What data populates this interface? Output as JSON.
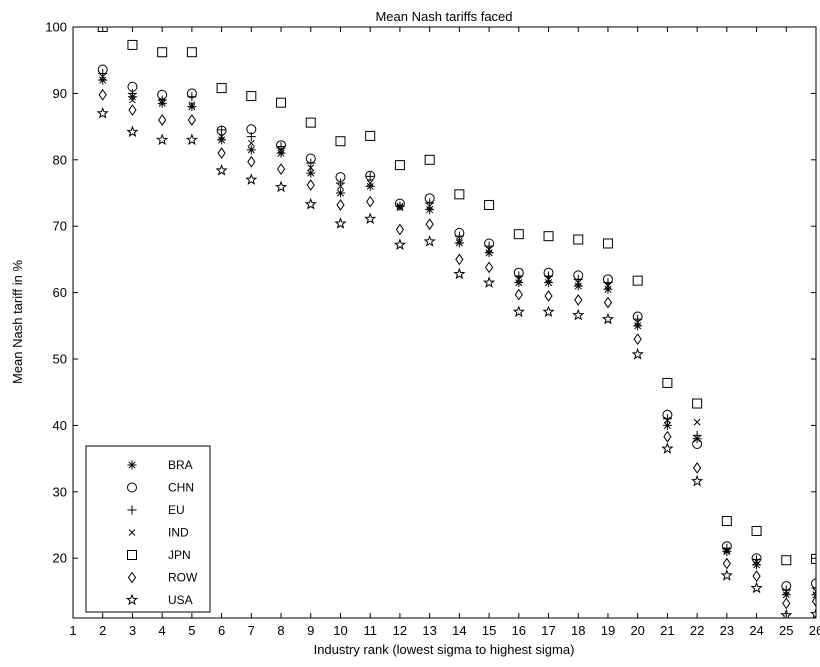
{
  "chart_data": {
    "type": "scatter",
    "title": "Mean Nash tariffs faced",
    "xlabel": "Industry rank (lowest sigma to highest sigma)",
    "ylabel": "Mean Nash tariff in %",
    "xlim": [
      1,
      26
    ],
    "ylim": [
      11,
      100
    ],
    "xticks": [
      1,
      2,
      3,
      4,
      5,
      6,
      7,
      8,
      9,
      10,
      11,
      12,
      13,
      14,
      15,
      16,
      17,
      18,
      19,
      20,
      21,
      22,
      23,
      24,
      25,
      26
    ],
    "yticks": [
      20,
      30,
      40,
      50,
      60,
      70,
      80,
      90,
      100
    ],
    "grid": false,
    "legend_position": "bottom-left",
    "x": [
      2,
      3,
      4,
      5,
      6,
      7,
      8,
      9,
      10,
      11,
      12,
      13,
      14,
      15,
      16,
      17,
      18,
      19,
      20,
      21,
      22,
      23,
      24,
      25,
      26
    ],
    "series": [
      {
        "name": "BRA",
        "marker": "asterisk",
        "values": [
          92.0,
          89.5,
          88.5,
          88.0,
          83.0,
          81.5,
          81.0,
          78.0,
          75.0,
          76.0,
          73.0,
          72.5,
          67.5,
          66.0,
          61.5,
          61.5,
          61.0,
          60.5,
          55.0,
          40.0,
          38.0,
          21.0,
          19.0,
          14.5,
          14.5
        ]
      },
      {
        "name": "CHN",
        "marker": "circle",
        "values": [
          93.6,
          91.0,
          89.8,
          90.0,
          84.4,
          84.6,
          82.2,
          80.2,
          77.4,
          77.6,
          73.4,
          74.2,
          69.0,
          67.4,
          63.0,
          63.0,
          62.6,
          62.0,
          56.4,
          41.6,
          37.2,
          21.8,
          20.0,
          15.8,
          16.2
        ]
      },
      {
        "name": "EU",
        "marker": "plus",
        "values": [
          93.0,
          90.0,
          89.0,
          89.5,
          84.5,
          83.5,
          82.0,
          79.5,
          76.5,
          77.5,
          73.0,
          73.5,
          68.5,
          67.0,
          62.5,
          62.5,
          62.0,
          61.5,
          56.0,
          41.0,
          38.5,
          21.5,
          19.8,
          15.2,
          15.5
        ]
      },
      {
        "name": "IND",
        "marker": "x",
        "values": [
          92.5,
          89.0,
          88.8,
          88.3,
          83.5,
          82.5,
          81.5,
          78.8,
          76.0,
          76.5,
          72.8,
          73.0,
          67.8,
          66.5,
          62.0,
          62.0,
          61.5,
          61.0,
          55.5,
          40.8,
          40.5,
          21.2,
          19.5,
          15.0,
          15.0
        ]
      },
      {
        "name": "JPN",
        "marker": "square",
        "values": [
          100.0,
          97.3,
          96.2,
          96.2,
          90.8,
          89.6,
          88.6,
          85.6,
          82.8,
          83.6,
          79.2,
          80.0,
          74.8,
          73.2,
          68.8,
          68.5,
          68.0,
          67.4,
          61.8,
          46.4,
          43.3,
          25.6,
          24.1,
          19.7,
          19.9
        ]
      },
      {
        "name": "ROW",
        "marker": "diamond",
        "values": [
          89.8,
          87.5,
          86.0,
          86.0,
          81.0,
          79.7,
          78.6,
          76.2,
          73.2,
          73.7,
          69.5,
          70.3,
          65.0,
          63.8,
          59.7,
          59.5,
          58.9,
          58.5,
          53.0,
          38.3,
          33.6,
          19.2,
          17.3,
          13.2,
          13.5
        ]
      },
      {
        "name": "USA",
        "marker": "star",
        "values": [
          87.0,
          84.2,
          83.0,
          83.0,
          78.4,
          77.0,
          75.9,
          73.3,
          70.4,
          71.1,
          67.2,
          67.7,
          62.8,
          61.5,
          57.1,
          57.1,
          56.6,
          56.0,
          50.7,
          36.5,
          31.6,
          17.4,
          15.5,
          11.4,
          11.6
        ]
      }
    ]
  }
}
